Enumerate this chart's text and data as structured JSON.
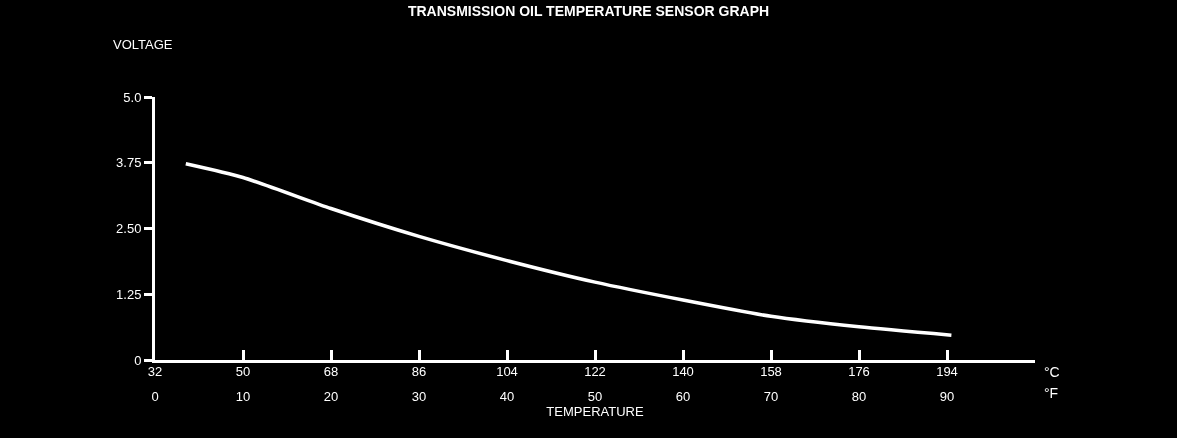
{
  "chart_data": {
    "type": "line",
    "title": "TRANSMISSION OIL TEMPERATURE SENSOR GRAPH",
    "ylabel": "VOLTAGE",
    "xlabel": "TEMPERATURE",
    "annotations": [
      "°C",
      "°F"
    ],
    "x": [
      3.5,
      10,
      20,
      30,
      40,
      50,
      60,
      70,
      80,
      90.5
    ],
    "series": [
      {
        "color": "#ffffff",
        "values": [
          3.73,
          3.47,
          2.88,
          2.35,
          1.89,
          1.48,
          1.14,
          0.83,
          0.63,
          0.47
        ]
      }
    ],
    "xlim": [
      0,
      100
    ],
    "xticks": [
      0,
      10,
      20,
      30,
      40,
      50,
      60,
      70,
      80,
      90
    ],
    "x2lim": [
      32,
      212
    ],
    "x2ticks": [
      32,
      50,
      68,
      86,
      104,
      122,
      140,
      158,
      176,
      194
    ],
    "ylim": [
      0,
      5
    ],
    "yticks": [
      0,
      1.25,
      {
        "value": 2.5,
        "label": "2.50"
      },
      3.75,
      {
        "value": 5,
        "label": "5.0"
      }
    ],
    "grid": false,
    "marker": "none",
    "line_style": "solid"
  }
}
